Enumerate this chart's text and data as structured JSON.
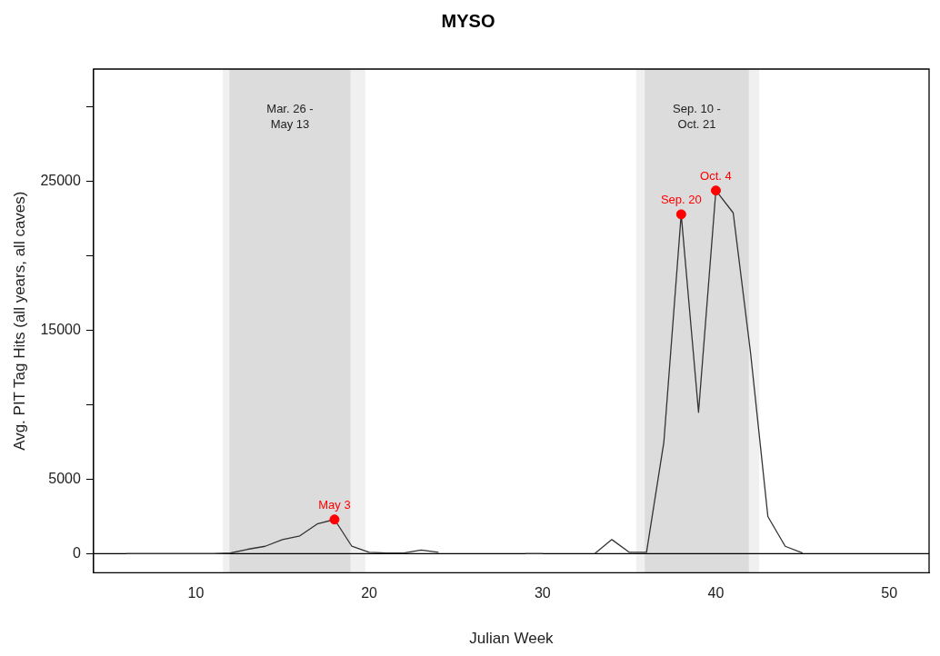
{
  "chart_data": {
    "type": "line",
    "title": "MYSO",
    "xlabel": "Julian Week",
    "ylabel": "Avg. PIT Tag Hits (all years, all caves)",
    "xlim": [
      4.1,
      52.3
    ],
    "xticks": [
      10,
      20,
      30,
      40,
      50
    ],
    "ylim": [
      -1280,
      32560
    ],
    "yticks": [
      0,
      5000,
      {
        "value": 10000,
        "label": null
      },
      15000,
      {
        "value": 20000,
        "label": null
      },
      25000,
      {
        "value": 30000,
        "label": null
      }
    ],
    "grid": false,
    "legend": false,
    "x": [
      6,
      7,
      8,
      9,
      10,
      11,
      12,
      13,
      14,
      15,
      16,
      17,
      18,
      19,
      20,
      21,
      22,
      23,
      24,
      25,
      26,
      27,
      28,
      29,
      30,
      31,
      32,
      33,
      34,
      35,
      36,
      37,
      38,
      39,
      40,
      41,
      42,
      43,
      44,
      45
    ],
    "series": [
      {
        "color": "#333333",
        "marker": "none",
        "values": [
          0,
          0,
          0,
          0,
          0,
          0,
          50,
          300,
          500,
          950,
          1200,
          2000,
          2300,
          500,
          100,
          50,
          50,
          250,
          100,
          null,
          null,
          null,
          null,
          0,
          0,
          null,
          null,
          0,
          950,
          100,
          100,
          7500,
          22800,
          9500,
          24400,
          22900,
          13500,
          2500,
          500,
          50
        ]
      },
      {
        "type": "scatter",
        "color": "#ff0000",
        "marker": "circle",
        "x": [
          18,
          38,
          40
        ],
        "values": [
          2300,
          22800,
          24400
        ]
      }
    ],
    "bands": [
      {
        "axis": "x",
        "from": 11.56,
        "to": 19.78,
        "color": "#f0f0f0"
      },
      {
        "axis": "x",
        "from": 11.94,
        "to": 18.92,
        "color": "#dcdcdc",
        "label": "Mar. 26 -\nMay 13"
      },
      {
        "axis": "x",
        "from": 35.4,
        "to": 42.5,
        "color": "#f0f0f0"
      },
      {
        "axis": "x",
        "from": 35.9,
        "to": 41.9,
        "color": "#dcdcdc",
        "label": "Sep. 10 -\nOct. 21"
      }
    ],
    "ref_lines": [
      {
        "axis": "y",
        "value": 0,
        "color": "#000000"
      }
    ],
    "annotations": [
      {
        "text": "May 3",
        "x": 18,
        "y": 2300
      },
      {
        "text": "Sep. 20",
        "x": 38,
        "y": 22800
      },
      {
        "text": "Oct. 4",
        "x": 40,
        "y": 24400
      }
    ]
  }
}
